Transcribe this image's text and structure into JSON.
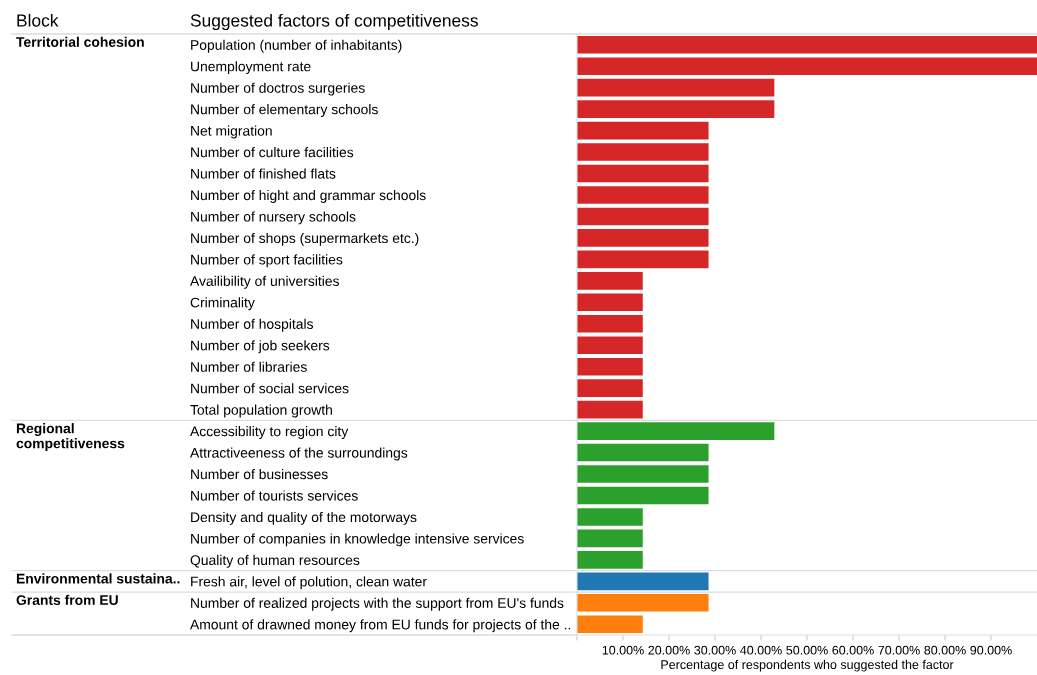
{
  "chart_data": {
    "type": "bar",
    "orientation": "horizontal",
    "legend": false,
    "grid": false,
    "legend_title": "Block",
    "ylabel": "Suggested factors of competitiveness",
    "xlabel": "Percentage of respondents who suggested the factor",
    "annotations": [
      "Territorial cohesion",
      "Regional\ncompetitiveness",
      "Environmental sustaina..",
      "Grants from EU"
    ],
    "categories": [
      "Population (number of inhabitants)",
      "Unemployment rate",
      "Number of doctros surgeries",
      "Number of elementary schools",
      "Net migration",
      "Number of culture facilities",
      "Number of finished flats",
      "Number of hight and grammar schools",
      "Number of nursery schools",
      "Number of shops (supermarkets etc.)",
      "Number of sport facilities",
      "Availibility of universities",
      "Criminality",
      "Number of hospitals",
      "Number of job seekers",
      "Number of libraries",
      "Number of social services",
      "Total population growth",
      "Accessibility to region city",
      "Attractiveeness of the surroundings",
      "Number of businesses",
      "Number of tourists services",
      "Density and quality of the motorways",
      "Number of companies in knowledge intensive services",
      "Quality of human resources",
      "Fresh air, level of polution, clean water",
      "Number of realized projects with the support from EU's funds",
      "Amount of drawned money from EU funds for projects of the .."
    ],
    "xlim": [
      0,
      100
    ],
    "xticks": [
      {
        "value": 0,
        "label": null
      },
      {
        "value": 10,
        "label": "10.00%"
      },
      {
        "value": 20,
        "label": "20.00%"
      },
      {
        "value": 30,
        "label": "30.00%"
      },
      {
        "value": 40,
        "label": "40.00%"
      },
      {
        "value": 50,
        "label": "50.00%"
      },
      {
        "value": 60,
        "label": "60.00%"
      },
      {
        "value": 70,
        "label": "70.00%"
      },
      {
        "value": 80,
        "label": "80.00%"
      },
      {
        "value": 90,
        "label": "90.00%"
      }
    ],
    "values": [
      100,
      100,
      42.9,
      42.9,
      28.6,
      28.6,
      28.6,
      28.6,
      28.6,
      28.6,
      28.6,
      14.3,
      14.3,
      14.3,
      14.3,
      14.3,
      14.3,
      14.3,
      42.9,
      28.6,
      28.6,
      28.6,
      14.3,
      14.3,
      14.3,
      28.6,
      28.6,
      14.3
    ],
    "colors": [
      "#d62728",
      "#d62728",
      "#d62728",
      "#d62728",
      "#d62728",
      "#d62728",
      "#d62728",
      "#d62728",
      "#d62728",
      "#d62728",
      "#d62728",
      "#d62728",
      "#d62728",
      "#d62728",
      "#d62728",
      "#d62728",
      "#d62728",
      "#d62728",
      "#2ca02c",
      "#2ca02c",
      "#2ca02c",
      "#2ca02c",
      "#2ca02c",
      "#2ca02c",
      "#2ca02c",
      "#1f77b4",
      "#ff7f0e",
      "#ff7f0e"
    ]
  }
}
